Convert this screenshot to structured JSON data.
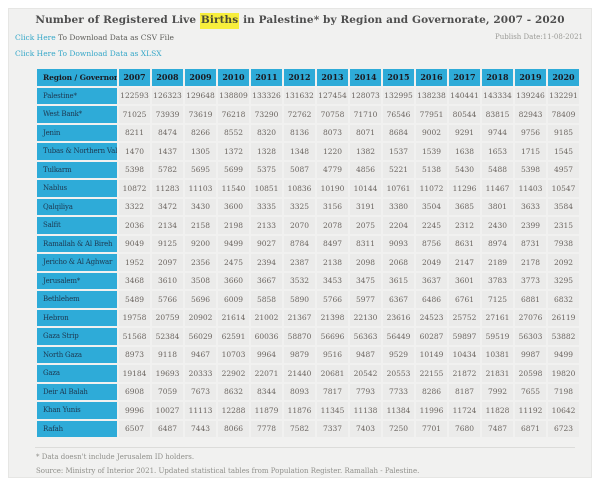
{
  "header": {
    "title_before": "Number of Registered Live ",
    "title_highlight": "Births",
    "title_after": " in Palestine* by Region and Governorate, 2007 - 2020",
    "csv_link_accent": "Click Here ",
    "csv_link_rest": "To Download Data as CSV File",
    "xlsx_link": "Click Here To Download Data as XLSX",
    "publish_date": "Publish Date:11-08-2021"
  },
  "table": {
    "columns": [
      "Region / Governorate",
      "2007",
      "2008",
      "2009",
      "2010",
      "2011",
      "2012",
      "2013",
      "2014",
      "2015",
      "2016",
      "2017",
      "2018",
      "2019",
      "2020"
    ],
    "rows": [
      {
        "label": "Palestine*",
        "values": [
          122593,
          126323,
          129648,
          138809,
          133326,
          131632,
          127454,
          128073,
          132995,
          138238,
          140441,
          143334,
          139246,
          132291
        ]
      },
      {
        "label": "West Bank*",
        "values": [
          71025,
          73939,
          73619,
          76218,
          73290,
          72762,
          70758,
          71710,
          76546,
          77951,
          80544,
          83815,
          82943,
          78409
        ]
      },
      {
        "label": "Jenin",
        "values": [
          8211,
          8474,
          8266,
          8552,
          8320,
          8136,
          8073,
          8071,
          8684,
          9002,
          9291,
          9744,
          9756,
          9185
        ]
      },
      {
        "label": "Tubas & Northern Valleys",
        "values": [
          1470,
          1437,
          1305,
          1372,
          1328,
          1348,
          1220,
          1382,
          1537,
          1539,
          1638,
          1653,
          1715,
          1545
        ]
      },
      {
        "label": "Tulkarm",
        "values": [
          5398,
          5782,
          5695,
          5699,
          5375,
          5087,
          4779,
          4856,
          5221,
          5138,
          5430,
          5488,
          5398,
          4957
        ]
      },
      {
        "label": "Nablus",
        "values": [
          10872,
          11283,
          11103,
          11540,
          10851,
          10836,
          10190,
          10144,
          10761,
          11072,
          11296,
          11467,
          11403,
          10547
        ]
      },
      {
        "label": "Qalqiliya",
        "values": [
          3322,
          3472,
          3430,
          3600,
          3335,
          3325,
          3156,
          3191,
          3380,
          3504,
          3685,
          3801,
          3633,
          3584
        ]
      },
      {
        "label": "Salfit",
        "values": [
          2036,
          2134,
          2158,
          2198,
          2133,
          2070,
          2078,
          2075,
          2204,
          2245,
          2312,
          2430,
          2399,
          2315
        ]
      },
      {
        "label": "Ramallah & Al Bireh",
        "values": [
          9049,
          9125,
          9200,
          9499,
          9027,
          8784,
          8497,
          8311,
          9093,
          8756,
          8631,
          8974,
          8731,
          7938
        ]
      },
      {
        "label": "Jericho & Al Aghwar",
        "values": [
          1952,
          2097,
          2356,
          2475,
          2394,
          2387,
          2138,
          2098,
          2068,
          2049,
          2147,
          2189,
          2178,
          2092
        ]
      },
      {
        "label": "Jerusalem*",
        "values": [
          3468,
          3610,
          3508,
          3660,
          3667,
          3532,
          3453,
          3475,
          3615,
          3637,
          3601,
          3783,
          3773,
          3295
        ]
      },
      {
        "label": "Bethlehem",
        "values": [
          5489,
          5766,
          5696,
          6009,
          5858,
          5890,
          5766,
          5977,
          6367,
          6486,
          6761,
          7125,
          6881,
          6832
        ]
      },
      {
        "label": "Hebron",
        "values": [
          19758,
          20759,
          20902,
          21614,
          21002,
          21367,
          21398,
          22130,
          23616,
          24523,
          25752,
          27161,
          27076,
          26119
        ]
      },
      {
        "label": "Gaza Strip",
        "values": [
          51568,
          52384,
          56029,
          62591,
          60036,
          58870,
          56696,
          56363,
          56449,
          60287,
          59897,
          59519,
          56303,
          53882
        ]
      },
      {
        "label": "North Gaza",
        "values": [
          8973,
          9118,
          9467,
          10703,
          9964,
          9879,
          9516,
          9487,
          9529,
          10149,
          10434,
          10381,
          9987,
          9499
        ]
      },
      {
        "label": "Gaza",
        "values": [
          19184,
          19693,
          20333,
          22902,
          22071,
          21440,
          20681,
          20542,
          20553,
          22155,
          21872,
          21831,
          20598,
          19820
        ]
      },
      {
        "label": "Deir Al Balah",
        "values": [
          6908,
          7059,
          7673,
          8632,
          8344,
          8093,
          7817,
          7793,
          7733,
          8286,
          8187,
          7992,
          7655,
          7198
        ]
      },
      {
        "label": "Khan Yunis",
        "values": [
          9996,
          10027,
          11113,
          12288,
          11879,
          11876,
          11345,
          11138,
          11384,
          11996,
          11724,
          11828,
          11192,
          10642
        ]
      },
      {
        "label": "Rafah",
        "values": [
          6507,
          6487,
          7443,
          8066,
          7778,
          7582,
          7337,
          7403,
          7250,
          7701,
          7680,
          7487,
          6871,
          6723
        ]
      }
    ]
  },
  "footer": {
    "note": "* Data doesn't include Jerusalem ID holders.",
    "source": "Source: Ministry of Interior 2021. Updated statistical tables from Population Register. Ramallah - Palestine."
  },
  "colors": {
    "accent_cyan": "#2eabd8",
    "link_cyan": "#35a7c8",
    "highlight_yellow": "#f7ee3d",
    "card_background": "#f1f1f0",
    "cell_background": "#ebebea"
  }
}
